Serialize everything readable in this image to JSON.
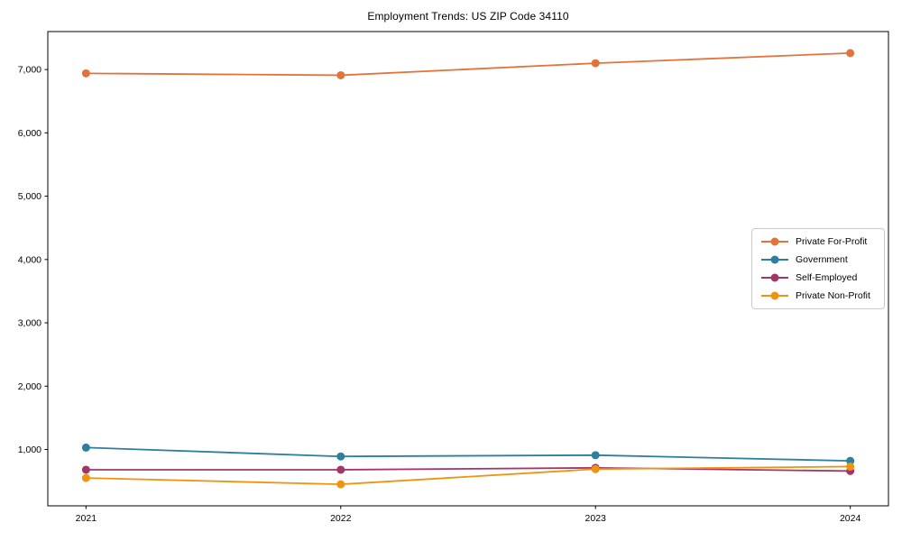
{
  "figure": {
    "background": "#ffffff",
    "frame_color": "#000000",
    "text_color": "#000000"
  },
  "chart_data": {
    "type": "line",
    "title": "Employment Trends: US ZIP Code 34110",
    "categories": [
      "2021",
      "2022",
      "2023",
      "2024"
    ],
    "series": [
      {
        "name": "Private For-Profit",
        "color": "#e2733b",
        "values": [
          6940,
          6910,
          7100,
          7260
        ]
      },
      {
        "name": "Government",
        "color": "#2d7f9d",
        "values": [
          1030,
          890,
          910,
          820
        ]
      },
      {
        "name": "Self-Employed",
        "color": "#a23668",
        "values": [
          680,
          680,
          710,
          660
        ]
      },
      {
        "name": "Private Non-Profit",
        "color": "#ee9410",
        "values": [
          550,
          450,
          690,
          730
        ]
      }
    ],
    "yticks": [
      {
        "value": 1000,
        "label": "1,000"
      },
      {
        "value": 2000,
        "label": "2,000"
      },
      {
        "value": 3000,
        "label": "3,000"
      },
      {
        "value": 4000,
        "label": "4,000"
      },
      {
        "value": 5000,
        "label": "5,000"
      },
      {
        "value": 6000,
        "label": "6,000"
      },
      {
        "value": 7000,
        "label": "7,000"
      }
    ],
    "ylim": [
      110,
      7600
    ],
    "xlabel": "",
    "ylabel": "",
    "grid": false,
    "legend_position": "center-right",
    "marker": "circle"
  }
}
